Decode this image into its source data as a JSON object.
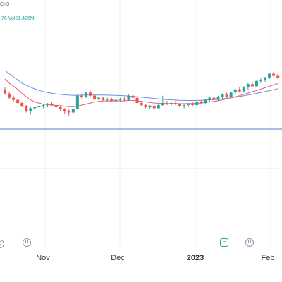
{
  "header": {
    "symbol_suffix": "C+3",
    "value_fragment": ".76",
    "volume_label": "Vol",
    "volume_value": "51.426M"
  },
  "colors": {
    "up": "#26a69a",
    "down": "#ef5350",
    "ma_fast": "#f05a6b",
    "ma_slow": "#6f8fe8",
    "baseline": "#5a7ccf",
    "grid": "#eef0f4"
  },
  "events": [
    {
      "type": "dividend",
      "label": "D"
    },
    {
      "type": "earnings",
      "label": "E"
    },
    {
      "type": "dividend",
      "label": "D"
    }
  ],
  "chart_data": {
    "type": "candlestick",
    "x_tick_labels": [
      "Nov",
      "Dec",
      "2023",
      "Feb"
    ],
    "y_range": [
      0,
      100
    ],
    "candles": [
      {
        "o": 52,
        "h": 54,
        "l": 47,
        "c": 48
      },
      {
        "o": 48,
        "h": 50,
        "l": 43,
        "c": 44
      },
      {
        "o": 44,
        "h": 46,
        "l": 40,
        "c": 42
      },
      {
        "o": 42,
        "h": 43,
        "l": 38,
        "c": 39
      },
      {
        "o": 39,
        "h": 40,
        "l": 35,
        "c": 36
      },
      {
        "o": 36,
        "h": 37,
        "l": 30,
        "c": 31
      },
      {
        "o": 31,
        "h": 35,
        "l": 28,
        "c": 34
      },
      {
        "o": 34,
        "h": 36,
        "l": 32,
        "c": 35
      },
      {
        "o": 35,
        "h": 37,
        "l": 33,
        "c": 36
      },
      {
        "o": 36,
        "h": 38,
        "l": 34,
        "c": 37
      },
      {
        "o": 37,
        "h": 39,
        "l": 35,
        "c": 38
      },
      {
        "o": 38,
        "h": 40,
        "l": 36,
        "c": 37
      },
      {
        "o": 37,
        "h": 39,
        "l": 34,
        "c": 35
      },
      {
        "o": 35,
        "h": 36,
        "l": 31,
        "c": 33
      },
      {
        "o": 33,
        "h": 34,
        "l": 29,
        "c": 31
      },
      {
        "o": 31,
        "h": 33,
        "l": 27,
        "c": 30
      },
      {
        "o": 30,
        "h": 34,
        "l": 29,
        "c": 33
      },
      {
        "o": 33,
        "h": 47,
        "l": 33,
        "c": 46
      },
      {
        "o": 46,
        "h": 48,
        "l": 43,
        "c": 45
      },
      {
        "o": 45,
        "h": 50,
        "l": 44,
        "c": 49
      },
      {
        "o": 49,
        "h": 51,
        "l": 45,
        "c": 46
      },
      {
        "o": 46,
        "h": 47,
        "l": 42,
        "c": 43
      },
      {
        "o": 43,
        "h": 45,
        "l": 41,
        "c": 44
      },
      {
        "o": 44,
        "h": 45,
        "l": 41,
        "c": 42
      },
      {
        "o": 42,
        "h": 44,
        "l": 40,
        "c": 43
      },
      {
        "o": 43,
        "h": 44,
        "l": 40,
        "c": 41
      },
      {
        "o": 41,
        "h": 43,
        "l": 40,
        "c": 42
      },
      {
        "o": 42,
        "h": 44,
        "l": 40,
        "c": 43
      },
      {
        "o": 43,
        "h": 45,
        "l": 41,
        "c": 42
      },
      {
        "o": 42,
        "h": 47,
        "l": 41,
        "c": 46
      },
      {
        "o": 46,
        "h": 48,
        "l": 43,
        "c": 44
      },
      {
        "o": 44,
        "h": 45,
        "l": 38,
        "c": 39
      },
      {
        "o": 39,
        "h": 41,
        "l": 36,
        "c": 37
      },
      {
        "o": 37,
        "h": 38,
        "l": 34,
        "c": 35
      },
      {
        "o": 35,
        "h": 37,
        "l": 33,
        "c": 36
      },
      {
        "o": 36,
        "h": 37,
        "l": 33,
        "c": 34
      },
      {
        "o": 34,
        "h": 38,
        "l": 33,
        "c": 37
      },
      {
        "o": 37,
        "h": 46,
        "l": 36,
        "c": 39
      },
      {
        "o": 39,
        "h": 41,
        "l": 37,
        "c": 38
      },
      {
        "o": 38,
        "h": 40,
        "l": 36,
        "c": 39
      },
      {
        "o": 39,
        "h": 41,
        "l": 37,
        "c": 38
      },
      {
        "o": 38,
        "h": 39,
        "l": 35,
        "c": 36
      },
      {
        "o": 36,
        "h": 38,
        "l": 34,
        "c": 37
      },
      {
        "o": 37,
        "h": 39,
        "l": 35,
        "c": 38
      },
      {
        "o": 38,
        "h": 40,
        "l": 36,
        "c": 37
      },
      {
        "o": 37,
        "h": 41,
        "l": 36,
        "c": 40
      },
      {
        "o": 40,
        "h": 42,
        "l": 38,
        "c": 39
      },
      {
        "o": 39,
        "h": 43,
        "l": 38,
        "c": 42
      },
      {
        "o": 42,
        "h": 45,
        "l": 40,
        "c": 44
      },
      {
        "o": 44,
        "h": 46,
        "l": 41,
        "c": 42
      },
      {
        "o": 42,
        "h": 46,
        "l": 41,
        "c": 45
      },
      {
        "o": 45,
        "h": 48,
        "l": 43,
        "c": 47
      },
      {
        "o": 47,
        "h": 49,
        "l": 44,
        "c": 45
      },
      {
        "o": 45,
        "h": 50,
        "l": 44,
        "c": 49
      },
      {
        "o": 49,
        "h": 53,
        "l": 47,
        "c": 52
      },
      {
        "o": 52,
        "h": 54,
        "l": 49,
        "c": 50
      },
      {
        "o": 50,
        "h": 55,
        "l": 49,
        "c": 54
      },
      {
        "o": 54,
        "h": 58,
        "l": 52,
        "c": 57
      },
      {
        "o": 57,
        "h": 59,
        "l": 54,
        "c": 55
      },
      {
        "o": 55,
        "h": 61,
        "l": 54,
        "c": 60
      },
      {
        "o": 60,
        "h": 63,
        "l": 58,
        "c": 61
      },
      {
        "o": 61,
        "h": 64,
        "l": 59,
        "c": 63
      },
      {
        "o": 63,
        "h": 68,
        "l": 62,
        "c": 67
      },
      {
        "o": 67,
        "h": 69,
        "l": 64,
        "c": 65
      },
      {
        "o": 65,
        "h": 68,
        "l": 62,
        "c": 63
      }
    ],
    "ma_fast": [
      62,
      58,
      55,
      52,
      48,
      45,
      42,
      40,
      39,
      38,
      37.5,
      37,
      36.8,
      36.5,
      36,
      35.5,
      35.5,
      36,
      37,
      38,
      39,
      40,
      40.5,
      41,
      41,
      41,
      41,
      41,
      41,
      41.5,
      41.5,
      41,
      40.5,
      40,
      39.5,
      39,
      38.8,
      38.6,
      38.5,
      38.4,
      38.4,
      38.4,
      38.4,
      38.5,
      38.6,
      38.8,
      39,
      39.5,
      40,
      40.6,
      41.3,
      42,
      43,
      44,
      45,
      46,
      47.2,
      48.5,
      49.8,
      51,
      52.3,
      53.6,
      55,
      56.3,
      57.5
    ],
    "ma_slow": [
      70,
      67,
      64,
      61,
      58,
      56,
      54,
      52.5,
      51,
      50,
      49,
      48.3,
      47.7,
      47.2,
      46.8,
      46.5,
      46.4,
      46.4,
      46.5,
      46.6,
      46.7,
      46.7,
      46.7,
      46.6,
      46.5,
      46.4,
      46.3,
      46.1,
      45.9,
      45.6,
      45.3,
      45,
      44.6,
      44.2,
      43.8,
      43.4,
      43,
      42.6,
      42.3,
      42,
      41.8,
      41.6,
      41.5,
      41.4,
      41.4,
      41.5,
      41.6,
      41.8,
      42,
      42.3,
      42.6,
      43,
      43.5,
      44,
      44.6,
      45.2,
      45.9,
      46.6,
      47.4,
      48.2,
      49,
      49.9,
      50.8,
      51.7,
      52.7
    ]
  }
}
